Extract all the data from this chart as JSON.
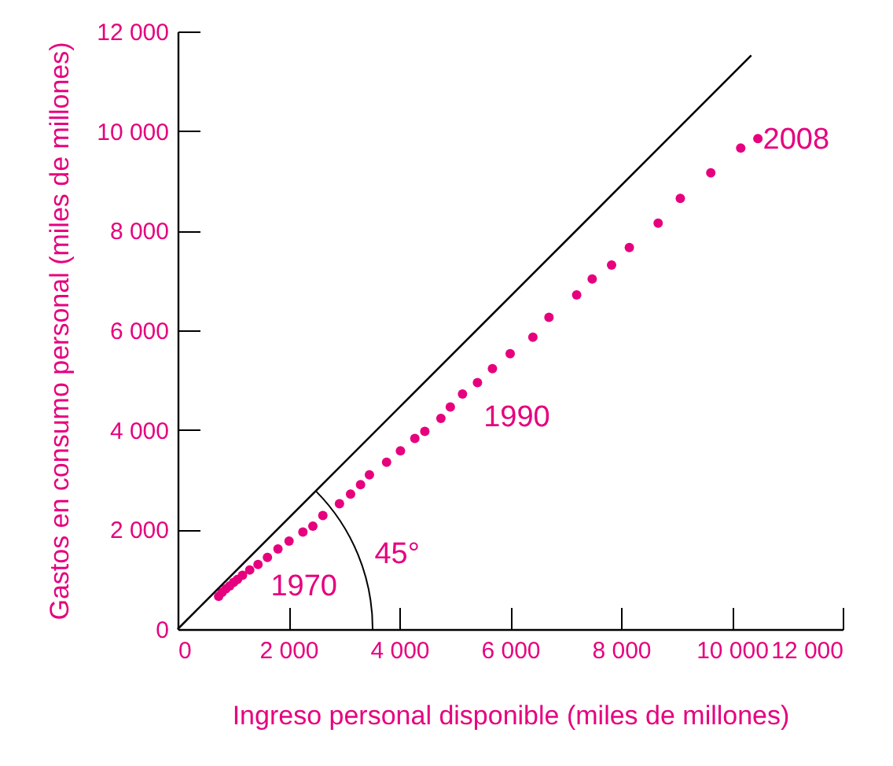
{
  "chart_data": {
    "type": "scatter",
    "xlabel": "Ingreso personal disponible (miles de millones)",
    "ylabel": "Gastos en consumo personal (miles de millones)",
    "xlim": [
      0,
      12000
    ],
    "ylim": [
      0,
      12000
    ],
    "xticks": [
      0,
      {
        "value": 2000,
        "label": "2 000"
      },
      {
        "value": 4000,
        "label": "4 000"
      },
      {
        "value": 6000,
        "label": "6 000"
      },
      {
        "value": 8000,
        "label": "8 000"
      },
      {
        "value": 10000,
        "label": "10 000"
      },
      {
        "value": 12000,
        "label": "12 000"
      }
    ],
    "yticks": [
      0,
      {
        "value": 2000,
        "label": "2 000"
      },
      {
        "value": 4000,
        "label": "4 000"
      },
      {
        "value": 6000,
        "label": "6 000"
      },
      {
        "value": 8000,
        "label": "8 000"
      },
      {
        "value": 10000,
        "label": "10 000"
      },
      {
        "value": 12000,
        "label": "12 000"
      }
    ],
    "grid": false,
    "series": [
      {
        "color": "#e6007e",
        "marker": "circle",
        "x": [
          740,
          800,
          870,
          940,
          1010,
          1080,
          1170,
          1300,
          1450,
          1620,
          1810,
          2010,
          2260,
          2440,
          2620,
          2920,
          3120,
          3300,
          3460,
          3770,
          4020,
          4280,
          4460,
          4750,
          4920,
          5140,
          5410,
          5680,
          6000,
          6410,
          6700,
          7200,
          7480,
          7830,
          8150,
          8670,
          9070,
          9620,
          10160,
          10470
        ],
        "values": [
          660,
          740,
          810,
          870,
          940,
          1000,
          1080,
          1190,
          1300,
          1440,
          1610,
          1770,
          1950,
          2070,
          2280,
          2520,
          2710,
          2900,
          3100,
          3350,
          3580,
          3830,
          3970,
          4230,
          4460,
          4720,
          4950,
          5230,
          5530,
          5860,
          6260,
          6710,
          7030,
          7310,
          7660,
          8150,
          8650,
          9160,
          9660,
          9850
        ]
      },
      {
        "type": "line",
        "color": "#000000",
        "x": [
          0,
          10350
        ],
        "values": [
          0,
          11520
        ]
      }
    ],
    "annotations": [
      "1970",
      "1990",
      "2008",
      "45°"
    ]
  }
}
